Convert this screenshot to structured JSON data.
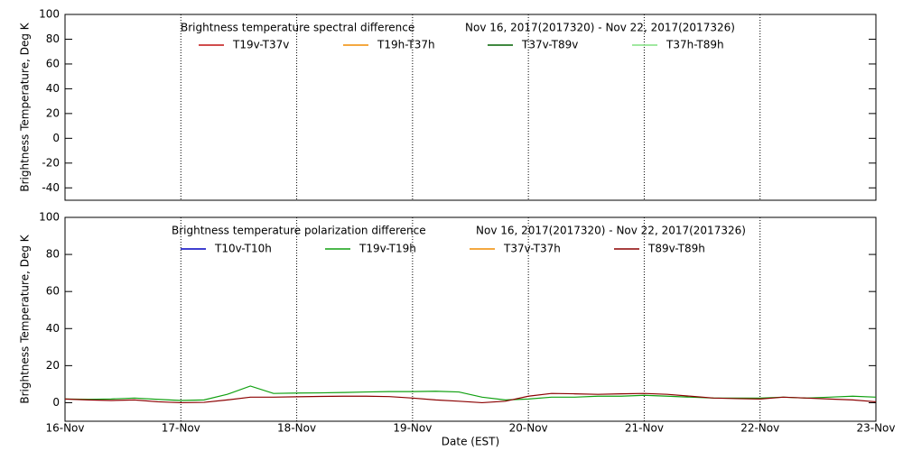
{
  "chart_data": [
    {
      "type": "line",
      "title": "Brightness temperature spectral difference",
      "subtitle": "Nov 16, 2017(2017320) - Nov 22, 2017(2017326)",
      "ylabel": "Brightness Temperature, Deg K",
      "ylim": [
        -50,
        100
      ],
      "yticks": [
        -40,
        -20,
        0,
        20,
        40,
        60,
        80,
        100
      ],
      "series": [
        {
          "name": "T19v-T37v",
          "color": "#c01010"
        },
        {
          "name": "T19h-T37h",
          "color": "#f08c00"
        },
        {
          "name": "T37v-T89v",
          "color": "#006000"
        },
        {
          "name": "T37h-T89h",
          "color": "#80e080"
        }
      ]
    },
    {
      "type": "line",
      "title": "Brightness temperature polarization difference",
      "subtitle": "Nov 16, 2017(2017320) - Nov 22, 2017(2017326)",
      "ylabel": "Brightness Temperature, Deg K",
      "xlabel": "Date (EST)",
      "xlim": [
        0,
        7
      ],
      "xticks": [
        {
          "value": 0,
          "label": "16-Nov"
        },
        {
          "value": 1,
          "label": "17-Nov"
        },
        {
          "value": 2,
          "label": "18-Nov"
        },
        {
          "value": 3,
          "label": "19-Nov"
        },
        {
          "value": 4,
          "label": "20-Nov"
        },
        {
          "value": 5,
          "label": "21-Nov"
        },
        {
          "value": 6,
          "label": "22-Nov"
        },
        {
          "value": 7,
          "label": "23-Nov"
        }
      ],
      "ylim": [
        -10,
        100
      ],
      "yticks": [
        0,
        20,
        40,
        60,
        80,
        100
      ],
      "x": [
        0,
        0.2,
        0.4,
        0.6,
        0.8,
        1.0,
        1.2,
        1.4,
        1.6,
        1.8,
        2.0,
        2.2,
        2.4,
        2.6,
        2.8,
        3.0,
        3.2,
        3.4,
        3.6,
        3.8,
        4.0,
        4.2,
        4.4,
        4.6,
        4.8,
        5.0,
        5.2,
        5.4,
        5.6,
        5.8,
        6.0,
        6.2,
        6.4,
        6.6,
        6.8,
        7.0
      ],
      "series": [
        {
          "name": "T10v-T10h",
          "color": "#0000c0"
        },
        {
          "name": "T19v-T19h",
          "color": "#10a010",
          "values": [
            2.0,
            1.8,
            2.0,
            2.5,
            1.8,
            1.2,
            1.5,
            4.5,
            9.0,
            5.0,
            5.2,
            5.3,
            5.5,
            5.8,
            6.0,
            6.0,
            6.2,
            5.8,
            3.0,
            1.5,
            2.0,
            3.0,
            3.0,
            3.5,
            3.5,
            4.0,
            3.5,
            3.0,
            2.5,
            2.5,
            2.5,
            3.0,
            2.5,
            3.0,
            3.5,
            3.0
          ]
        },
        {
          "name": "T37v-T37h",
          "color": "#f08c00"
        },
        {
          "name": "T89v-T89h",
          "color": "#8b0000",
          "values": [
            2.0,
            1.5,
            1.2,
            1.5,
            0.5,
            0.0,
            0.2,
            1.5,
            3.0,
            3.0,
            3.2,
            3.4,
            3.5,
            3.5,
            3.3,
            2.5,
            1.5,
            0.8,
            0.0,
            0.8,
            3.5,
            5.0,
            4.8,
            4.5,
            4.8,
            5.0,
            4.5,
            3.5,
            2.5,
            2.2,
            2.0,
            3.0,
            2.5,
            2.0,
            1.5,
            0.5
          ]
        }
      ]
    }
  ]
}
